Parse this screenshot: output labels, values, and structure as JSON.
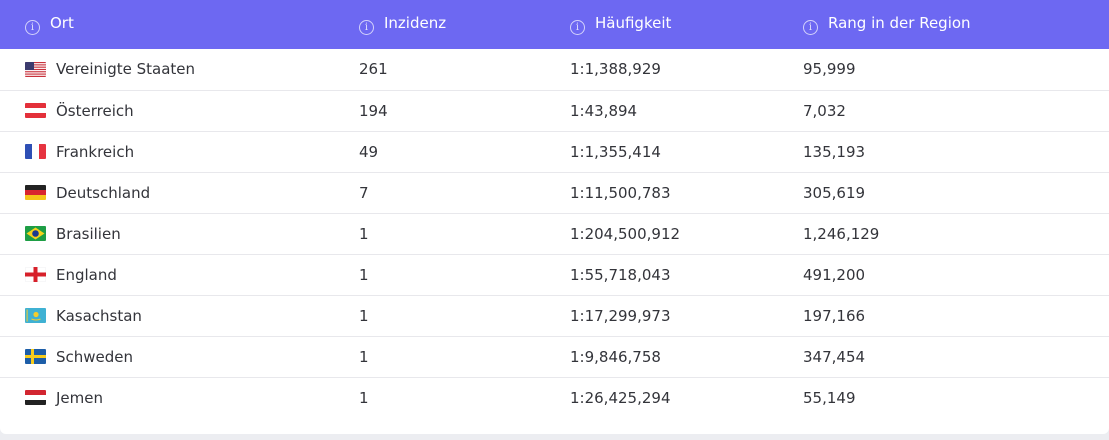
{
  "table": {
    "headers": [
      {
        "label": "Ort",
        "icon": "info-icon"
      },
      {
        "label": "Inzidenz",
        "icon": "info-icon"
      },
      {
        "label": "Häufigkeit",
        "icon": "info-icon"
      },
      {
        "label": "Rang in der Region",
        "icon": "info-icon"
      }
    ],
    "rows": [
      {
        "flag": "us-flag-icon",
        "ort": "Vereinigte Staaten",
        "inzidenz": "261",
        "haeufigkeit": "1:1,388,929",
        "rang": "95,999"
      },
      {
        "flag": "austria-flag-icon",
        "ort": "Österreich",
        "inzidenz": "194",
        "haeufigkeit": "1:43,894",
        "rang": "7,032"
      },
      {
        "flag": "france-flag-icon",
        "ort": "Frankreich",
        "inzidenz": "49",
        "haeufigkeit": "1:1,355,414",
        "rang": "135,193"
      },
      {
        "flag": "germany-flag-icon",
        "ort": "Deutschland",
        "inzidenz": "7",
        "haeufigkeit": "1:11,500,783",
        "rang": "305,619"
      },
      {
        "flag": "brazil-flag-icon",
        "ort": "Brasilien",
        "inzidenz": "1",
        "haeufigkeit": "1:204,500,912",
        "rang": "1,246,129"
      },
      {
        "flag": "england-flag-icon",
        "ort": "England",
        "inzidenz": "1",
        "haeufigkeit": "1:55,718,043",
        "rang": "491,200"
      },
      {
        "flag": "kazakhstan-flag-icon",
        "ort": "Kasachstan",
        "inzidenz": "1",
        "haeufigkeit": "1:17,299,973",
        "rang": "197,166"
      },
      {
        "flag": "sweden-flag-icon",
        "ort": "Schweden",
        "inzidenz": "1",
        "haeufigkeit": "1:9,846,758",
        "rang": "347,454"
      },
      {
        "flag": "yemen-flag-icon",
        "ort": "Jemen",
        "inzidenz": "1",
        "haeufigkeit": "1:26,425,294",
        "rang": "55,149"
      }
    ]
  },
  "colors": {
    "header_bg": "#6d68f2",
    "header_text": "#ffffff",
    "row_text": "#33343a",
    "row_divider": "#e8e8ec"
  }
}
